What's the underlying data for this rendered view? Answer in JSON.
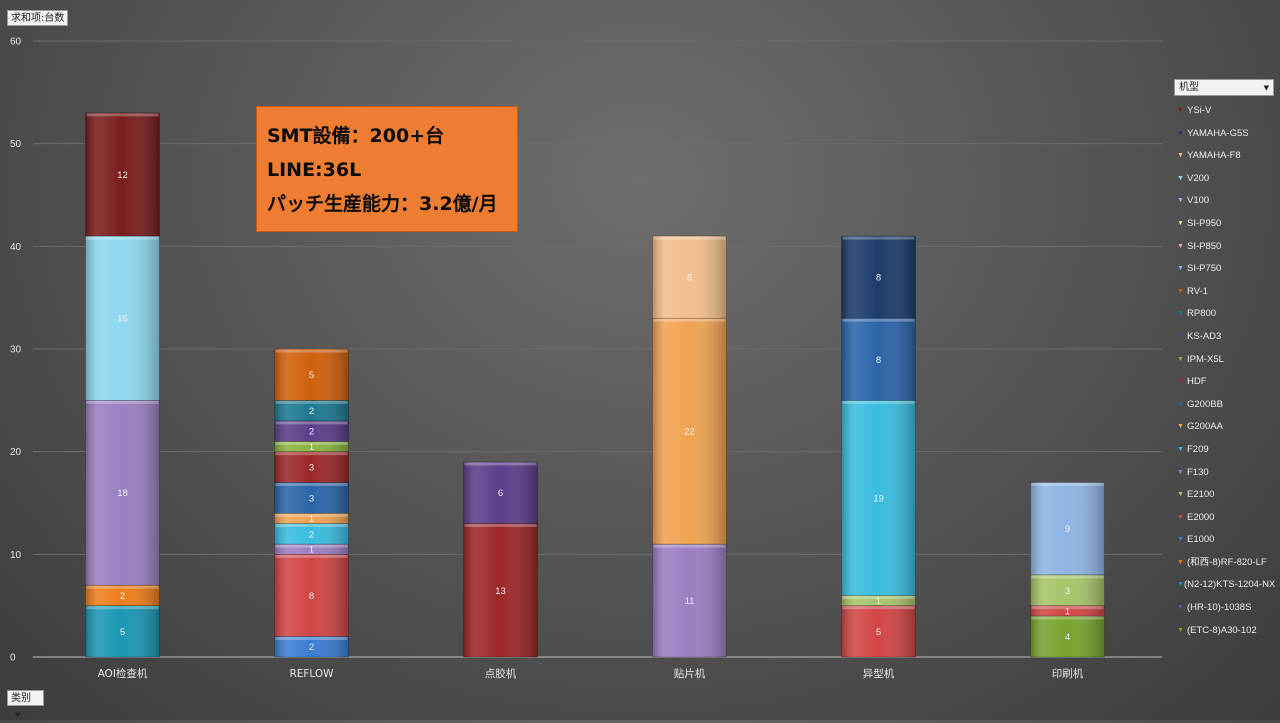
{
  "pivot": {
    "sum_label": "求和项:台数",
    "category_label": "类别",
    "legend_title": "机型"
  },
  "callout": {
    "line1": "SMT設備：200+台",
    "line2": "LINE:36L",
    "line3": "パッチ生産能力：3.2億/月"
  },
  "chart_data": {
    "type": "bar",
    "stacked": true,
    "categories": [
      "AOI检查机",
      "REFLOW",
      "点胶机",
      "贴片机",
      "异型机",
      "印刷机"
    ],
    "ylim": [
      0,
      60
    ],
    "yticks": [
      0,
      10,
      20,
      30,
      40,
      50,
      60
    ],
    "grid": true,
    "legend_position": "right",
    "series": [
      {
        "name": "(ETC-8)A30-102",
        "color": "#77a22e",
        "values": [
          0,
          0,
          0,
          0,
          0,
          4
        ]
      },
      {
        "name": "(HR-10)-1038S",
        "color": "#6b4d94",
        "values": [
          0,
          0,
          0,
          0,
          0,
          0
        ]
      },
      {
        "name": "(N2-12)KTS-1204-NX",
        "color": "#1a97b5",
        "values": [
          5,
          0,
          0,
          0,
          0,
          0
        ]
      },
      {
        "name": "(和西-8)RF-820-LF",
        "color": "#ef7d1a",
        "values": [
          2,
          0,
          0,
          0,
          0,
          0
        ]
      },
      {
        "name": "E1000",
        "color": "#3b7dd1",
        "values": [
          0,
          2,
          0,
          0,
          0,
          0
        ]
      },
      {
        "name": "E2000",
        "color": "#d14545",
        "values": [
          0,
          8,
          0,
          0,
          5,
          1
        ]
      },
      {
        "name": "E2100",
        "color": "#a6c46a",
        "values": [
          0,
          0,
          0,
          0,
          1,
          3
        ]
      },
      {
        "name": "F130",
        "color": "#9b7fc2",
        "values": [
          18,
          1,
          0,
          11,
          0,
          0
        ]
      },
      {
        "name": "F209",
        "color": "#39bce0",
        "values": [
          0,
          2,
          0,
          0,
          19,
          0
        ]
      },
      {
        "name": "G200AA",
        "color": "#f0a351",
        "values": [
          0,
          1,
          0,
          22,
          0,
          0
        ]
      },
      {
        "name": "G200BB",
        "color": "#2a64a8",
        "values": [
          0,
          3,
          0,
          0,
          8,
          0
        ]
      },
      {
        "name": "HDF",
        "color": "#9c2727",
        "values": [
          0,
          3,
          13,
          0,
          0,
          0
        ]
      },
      {
        "name": "IPM-X5L",
        "color": "#89b33e",
        "values": [
          0,
          1,
          0,
          0,
          0,
          0
        ]
      },
      {
        "name": "KS-AD3",
        "color": "#5c3e8a",
        "values": [
          0,
          2,
          6,
          0,
          0,
          0
        ]
      },
      {
        "name": "RP800",
        "color": "#1d7890",
        "values": [
          0,
          2,
          0,
          0,
          0,
          0
        ]
      },
      {
        "name": "RV-1",
        "color": "#d0600c",
        "values": [
          0,
          5,
          0,
          0,
          0,
          0
        ]
      },
      {
        "name": "SI-P750",
        "color": "#8fb4e3",
        "values": [
          0,
          0,
          0,
          0,
          0,
          9
        ]
      },
      {
        "name": "SI-P850",
        "color": "#e3a4a4",
        "values": [
          0,
          0,
          0,
          0,
          0,
          0
        ]
      },
      {
        "name": "SI-P950",
        "color": "#c8dba0",
        "values": [
          0,
          0,
          0,
          0,
          0,
          0
        ]
      },
      {
        "name": "V100",
        "color": "#b9a4d8",
        "values": [
          0,
          0,
          0,
          0,
          0,
          0
        ]
      },
      {
        "name": "V200",
        "color": "#8ed8f0",
        "values": [
          16,
          0,
          0,
          0,
          0,
          0
        ]
      },
      {
        "name": "YAMAHA-F8",
        "color": "#f2be8b",
        "values": [
          0,
          0,
          0,
          8,
          0,
          0
        ]
      },
      {
        "name": "YAMAHA-G5S",
        "color": "#1c3c6b",
        "values": [
          0,
          0,
          0,
          0,
          8,
          0
        ]
      },
      {
        "name": "YSi-V",
        "color": "#7a1c1c",
        "values": [
          12,
          0,
          0,
          0,
          0,
          0
        ]
      }
    ]
  }
}
